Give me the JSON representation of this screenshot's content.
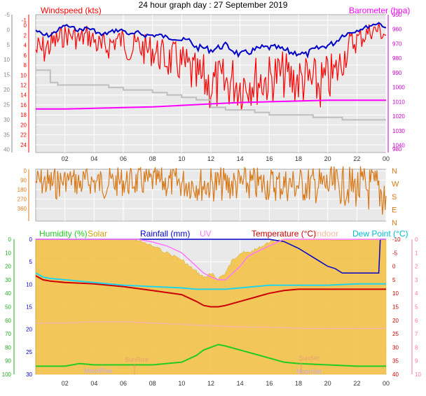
{
  "title": "24 hour graph day : 27 September 2019",
  "x_axis": {
    "ticks": [
      "02",
      "04",
      "06",
      "08",
      "10",
      "12",
      "14",
      "16",
      "18",
      "20",
      "22",
      "00"
    ],
    "hours": [
      2,
      4,
      6,
      8,
      10,
      12,
      14,
      16,
      18,
      20,
      22,
      24
    ]
  },
  "colors": {
    "background": "#ffffff",
    "plot_bg": "#e9e9e9",
    "grid": "#ffffff",
    "wind_speed": "#ff0000",
    "wind_avg": "#0000c8",
    "gust_max": "#bfbfbf",
    "barometer": "#ff00ff",
    "direction": "#d97a1a",
    "humidity": "#22cc22",
    "solar": "#d4a000",
    "rainfall": "#0000cc",
    "uv": "#ff77ff",
    "temperature": "#cc0000",
    "indoor": "#f5b7a0",
    "dew_point": "#22d4e8",
    "dew_label": "#00bcd4",
    "solar_fill": "#f5c040",
    "sun_label": "#e8a070",
    "moon_label": "#c8a8e8",
    "left_axis": "#888888",
    "right_axis_top": "#cc00cc",
    "right_axis_bottom": "#ff77aa",
    "humidity_axis": "#22aa22"
  },
  "chart_data": [
    {
      "type": "line",
      "panel": "wind",
      "legend": [
        "Windspeed (kts)",
        "Barometer (hpa)"
      ],
      "left_axis_outer": {
        "ticks": [
          -5,
          0,
          5,
          10,
          15,
          20,
          25,
          30,
          35,
          40
        ],
        "range": [
          -5,
          41
        ]
      },
      "left_axis_inner": {
        "ticks": [
          -1,
          0,
          2,
          4,
          6,
          8,
          10,
          12,
          14,
          16,
          18,
          20,
          22,
          24
        ],
        "range": [
          -1,
          25
        ]
      },
      "right_axis": {
        "ticks": [
          950,
          960,
          970,
          980,
          990,
          1000,
          1010,
          1020,
          1030,
          1040
        ],
        "range": [
          950,
          1045
        ],
        "extra_bottom_label": "980"
      },
      "series": [
        {
          "name": "Windspeed (kts)",
          "role": "speed",
          "x": [
            0,
            0.5,
            1,
            1.5,
            2,
            2.5,
            3,
            3.5,
            4,
            4.5,
            5,
            5.5,
            6,
            6.5,
            7,
            7.5,
            8,
            8.5,
            9,
            9.5,
            10,
            10.5,
            11,
            11.5,
            12,
            12.5,
            13,
            13.5,
            14,
            14.5,
            15,
            15.5,
            16,
            16.5,
            17,
            17.5,
            18,
            18.5,
            19,
            19.5,
            20,
            20.5,
            21,
            21.5,
            22,
            22.5,
            23,
            23.5,
            24
          ],
          "y": [
            5,
            5,
            4,
            3,
            2,
            2,
            3,
            2,
            3,
            5,
            4,
            3,
            3,
            5,
            4,
            5,
            5,
            6,
            7,
            7,
            8,
            9,
            11,
            11,
            12,
            12,
            12,
            11,
            12,
            11,
            11,
            11,
            11,
            10,
            10,
            11,
            11,
            11,
            12,
            12,
            11,
            10,
            7,
            4,
            3,
            2,
            1,
            1,
            2
          ]
        },
        {
          "name": "Wind Average",
          "role": "average",
          "x": [
            0,
            0.5,
            1,
            1.5,
            2,
            2.5,
            3,
            3.5,
            4,
            4.5,
            5,
            5.5,
            6,
            6.5,
            7,
            7.5,
            8,
            8.5,
            9,
            9.5,
            10,
            10.5,
            11,
            11.5,
            12,
            12.5,
            13,
            13.5,
            14,
            14.5,
            15,
            15.5,
            16,
            16.5,
            17,
            17.5,
            18,
            18.5,
            19,
            19.5,
            20,
            20.5,
            21,
            21.5,
            22,
            22.5,
            23,
            23.5,
            24
          ],
          "y": [
            1,
            2,
            2,
            1,
            0,
            0.5,
            1,
            0.5,
            1,
            2,
            1.5,
            1,
            1,
            2,
            1.5,
            2,
            2,
            2,
            2.5,
            2.5,
            3,
            3,
            4.5,
            4.5,
            5,
            4.5,
            4,
            5,
            6,
            5.5,
            5,
            4.5,
            4.5,
            4.5,
            5,
            5.5,
            5.5,
            6,
            5,
            4.5,
            4,
            3.5,
            2,
            1.5,
            1,
            0.5,
            0,
            -0.5,
            0.5
          ]
        },
        {
          "name": "Gust Max",
          "role": "max",
          "x": [
            0,
            1,
            1.5,
            2,
            3,
            4,
            5,
            6,
            7,
            8,
            9,
            10,
            11,
            12,
            13,
            14,
            15,
            16,
            17,
            18,
            19,
            20,
            21,
            22,
            23,
            24
          ],
          "y": [
            9,
            11.5,
            12,
            12,
            12,
            12,
            12.5,
            13,
            13,
            13.5,
            14,
            14.5,
            15,
            16.5,
            17,
            17,
            17.5,
            18,
            18,
            18,
            18.5,
            18.5,
            19,
            19,
            19,
            19
          ]
        },
        {
          "name": "Barometer (hpa)",
          "role": "pressure",
          "x": [
            0,
            2,
            4,
            6,
            8,
            10,
            12,
            14,
            16,
            18,
            20,
            22,
            24
          ],
          "y": [
            1015,
            1015,
            1014.5,
            1014,
            1013.5,
            1012.5,
            1011.5,
            1010.5,
            1010,
            1009.5,
            1009,
            1009,
            1009
          ]
        }
      ]
    },
    {
      "type": "line",
      "panel": "direction",
      "left_axis": {
        "ticks": [
          0,
          90,
          180,
          270,
          360
        ],
        "range": [
          0,
          360
        ]
      },
      "right_axis": {
        "labels": [
          "N",
          "W",
          "S",
          "E",
          "N"
        ]
      },
      "series": [
        {
          "name": "Wind Direction",
          "x": [
            0,
            0.5,
            1,
            1.5,
            2,
            2.5,
            3,
            3.5,
            4,
            4.5,
            5,
            5.5,
            6,
            6.5,
            7,
            7.5,
            8,
            8.5,
            9,
            9.5,
            10,
            10.5,
            11,
            11.5,
            12,
            12.5,
            13,
            13.5,
            14,
            14.5,
            15,
            15.5,
            16,
            16.5,
            17,
            17.5,
            18,
            18.5,
            19,
            19.5,
            20,
            20.5,
            21,
            21.5,
            22,
            22.5,
            23,
            23.5,
            24
          ],
          "y": [
            100,
            110,
            130,
            120,
            90,
            80,
            130,
            90,
            110,
            120,
            115,
            110,
            105,
            110,
            105,
            110,
            100,
            110,
            115,
            112,
            118,
            120,
            125,
            130,
            130,
            128,
            132,
            130,
            130,
            128,
            132,
            130,
            128,
            130,
            130,
            132,
            135,
            135,
            138,
            140,
            140,
            142,
            145,
            150,
            160,
            170,
            175,
            180,
            240
          ]
        }
      ]
    },
    {
      "type": "line",
      "panel": "temperature",
      "legend": [
        "Humidity (%)",
        "Solar",
        "Rainfall (mm)",
        "UV",
        "Temperature (°C)",
        "Indoor",
        "Dew Point (°C)"
      ],
      "humidity_axis": {
        "ticks": [
          0,
          10,
          20,
          30,
          40,
          50,
          60,
          70,
          80,
          90,
          100
        ],
        "range": [
          0,
          100
        ]
      },
      "rain_axis": {
        "ticks": [
          0,
          5,
          10,
          15,
          20,
          25,
          30
        ],
        "range": [
          0,
          30
        ]
      },
      "temp_axis": {
        "ticks": [
          -10,
          -5,
          0,
          5,
          10,
          15,
          20,
          25,
          30,
          35,
          40
        ],
        "range": [
          -10,
          40
        ]
      },
      "uv_axis": {
        "ticks": [
          0,
          1,
          2,
          3,
          4,
          5,
          6,
          7,
          8,
          9,
          10
        ],
        "range": [
          0,
          10
        ]
      },
      "annotations": [
        "MoonRise",
        "SunRise",
        "SunSet",
        "MoonSet"
      ],
      "series": [
        {
          "name": "Humidity (%)",
          "axis": "humidity",
          "x": [
            0,
            2,
            3,
            4,
            6,
            8,
            10,
            11,
            11.5,
            12,
            12.5,
            13,
            14,
            15,
            16,
            17,
            18,
            20,
            22,
            24
          ],
          "y": [
            94,
            94,
            92,
            93,
            93,
            93,
            91,
            86,
            82,
            80,
            78,
            79,
            82,
            85,
            88,
            91,
            92,
            93,
            94,
            94
          ]
        },
        {
          "name": "Temperature (°C)",
          "axis": "temp",
          "x": [
            0,
            0.5,
            1,
            2,
            4,
            6,
            8,
            10,
            11,
            11.5,
            12,
            12.5,
            13,
            14,
            15,
            16,
            17,
            18,
            20,
            22,
            24
          ],
          "y": [
            3.5,
            5,
            5.5,
            6,
            6.5,
            7.5,
            9,
            10.5,
            13,
            14.5,
            15,
            15,
            14.5,
            13,
            11.5,
            10,
            9,
            8.5,
            8.5,
            8.5,
            8.5
          ]
        },
        {
          "name": "Dew Point (°C)",
          "axis": "temp",
          "x": [
            0,
            0.5,
            1,
            2,
            4,
            6,
            8,
            10,
            11,
            12,
            13,
            14,
            15,
            16,
            17,
            18,
            20,
            22,
            24
          ],
          "y": [
            2.5,
            4,
            4.5,
            5,
            6,
            7,
            7.5,
            8,
            8.5,
            8.5,
            8.5,
            8,
            7.5,
            7,
            7,
            7,
            7,
            6.5,
            6.5
          ]
        },
        {
          "name": "Indoor",
          "axis": "temp",
          "x": [
            0,
            2,
            4,
            6,
            8,
            10,
            12,
            14,
            16,
            18,
            20,
            22,
            24
          ],
          "y": [
            21,
            21,
            20.5,
            20.5,
            21,
            21.5,
            22,
            22.5,
            22.5,
            23,
            23,
            23,
            23
          ]
        },
        {
          "name": "Rainfall (mm)",
          "axis": "rain",
          "x": [
            0,
            15.5,
            16,
            17,
            18,
            19,
            19.5,
            20,
            20.5,
            21,
            21.5,
            22,
            23.5,
            23.6,
            24
          ],
          "y": [
            0,
            0,
            0,
            0.5,
            2,
            4,
            5,
            6,
            6.5,
            7.5,
            7.5,
            7.5,
            7.5,
            0,
            0
          ]
        },
        {
          "name": "UV",
          "axis": "uv",
          "x": [
            0,
            7,
            8,
            9,
            10,
            10.5,
            11,
            11.5,
            12,
            12.5,
            13,
            13.5,
            14,
            14.5,
            15,
            16,
            17,
            24
          ],
          "y": [
            0,
            0,
            0.2,
            0.5,
            1,
            1.5,
            2,
            2.5,
            2.8,
            3,
            3,
            2.5,
            2,
            1.3,
            1,
            0.5,
            0,
            0
          ]
        },
        {
          "name": "Solar",
          "axis": "uv",
          "fill": true,
          "x": [
            0,
            6.8,
            7,
            8,
            9,
            10,
            10.5,
            11,
            11.5,
            12,
            12.5,
            13,
            13.5,
            14,
            14.5,
            15,
            15.5,
            16,
            16.5,
            17,
            24
          ],
          "y": [
            0,
            0,
            0.1,
            0.5,
            1,
            1.5,
            2,
            2.4,
            2.8,
            2.6,
            2.9,
            2.5,
            1.5,
            1,
            1,
            0.8,
            0.5,
            0.2,
            0.1,
            0,
            0
          ]
        }
      ]
    }
  ]
}
